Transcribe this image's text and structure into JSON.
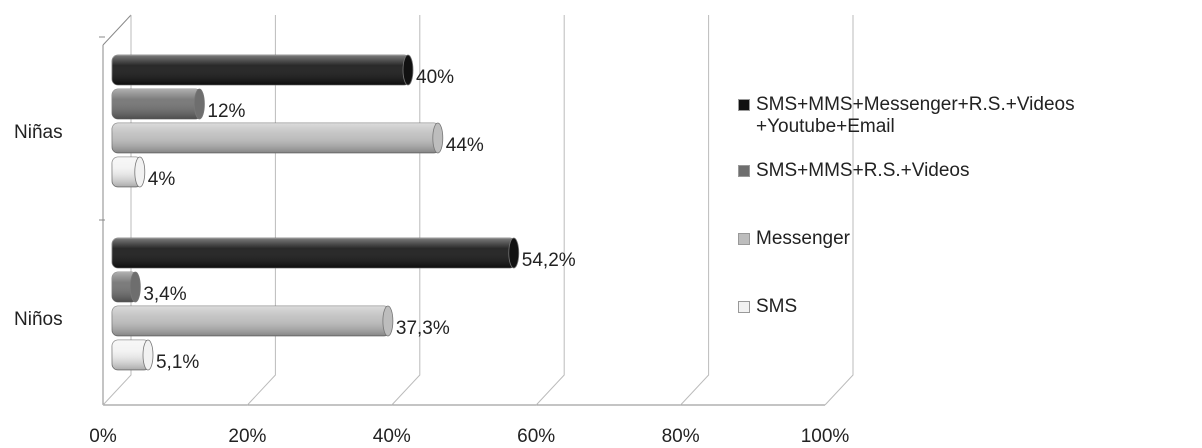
{
  "chart_data": {
    "type": "bar",
    "orientation": "horizontal",
    "categories": [
      "Niñas",
      "Niños"
    ],
    "series": [
      {
        "name": "SMS+MMS+Messenger+R.S.+Videos +Youtube+Email",
        "color": "#111111",
        "values": [
          40,
          54.2
        ],
        "value_labels": [
          "40%",
          "54,2%"
        ]
      },
      {
        "name": "SMS+MMS+R.S.+Videos",
        "color": "#6e6e6e",
        "values": [
          12,
          3.4
        ],
        "value_labels": [
          "12%",
          "3,4%"
        ]
      },
      {
        "name": "Messenger",
        "color": "#bdbdbd",
        "values": [
          44,
          37.3
        ],
        "value_labels": [
          "44%",
          "37,3%"
        ]
      },
      {
        "name": "SMS",
        "color": "#f2f2f2",
        "values": [
          4,
          5.1
        ],
        "value_labels": [
          "4%",
          "5,1%"
        ]
      }
    ],
    "xlim": [
      0,
      100
    ],
    "xticks": [
      {
        "value": 0,
        "label": "0%"
      },
      {
        "value": 20,
        "label": "20%"
      },
      {
        "value": 40,
        "label": "40%"
      },
      {
        "value": 60,
        "label": "60%"
      },
      {
        "value": 80,
        "label": "80%"
      },
      {
        "value": 100,
        "label": "100%"
      }
    ],
    "grid": true,
    "legend": "right"
  }
}
